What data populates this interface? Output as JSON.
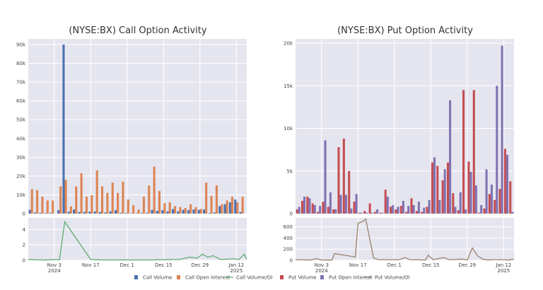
{
  "colors": {
    "call_volume": "#4c72b0",
    "call_oi": "#dd8452",
    "call_ratio": "#55a868",
    "put_volume": "#c44e52",
    "put_oi": "#8172b3",
    "put_ratio": "#937860",
    "plot_bg": "#e5e5ef",
    "grid": "#ffffff"
  },
  "legend": [
    "Call Volume",
    "Call Open Interest",
    "Call Volume/OI",
    "Put Volume",
    "Put Open Interest",
    "Put Volume/OI"
  ],
  "chart_data": [
    {
      "type": "bar",
      "title": "(NYSE:BX) Call Option Activity",
      "xlabel": "",
      "ylabel": "",
      "ylim": [
        0,
        93000
      ],
      "yticks": [
        0,
        10000,
        20000,
        30000,
        40000,
        50000,
        60000,
        70000,
        80000,
        90000
      ],
      "ytick_labels": [
        "0",
        "10k",
        "20k",
        "30k",
        "40k",
        "50k",
        "60k",
        "70k",
        "80k",
        "90k"
      ],
      "x_range": [
        "2024-10-24",
        "2025-01-16"
      ],
      "xticks": [
        "2024-11-03",
        "2024-11-17",
        "2024-12-01",
        "2024-12-15",
        "2024-12-29",
        "2025-01-12"
      ],
      "xtick_labels": [
        [
          "Nov 3",
          "2024"
        ],
        [
          "Nov 17"
        ],
        [
          "Dec 1"
        ],
        [
          "Dec 15"
        ],
        [
          "Dec 29"
        ],
        [
          "Jan 12",
          "2025"
        ]
      ],
      "dates": [
        "2024-10-25",
        "2024-10-27",
        "2024-10-29",
        "2024-10-31",
        "2024-11-02",
        "2024-11-05",
        "2024-11-07",
        "2024-11-09",
        "2024-11-11",
        "2024-11-13",
        "2024-11-15",
        "2024-11-17",
        "2024-11-19",
        "2024-11-21",
        "2024-11-23",
        "2024-11-25",
        "2024-11-27",
        "2024-11-29",
        "2024-12-01",
        "2024-12-03",
        "2024-12-05",
        "2024-12-07",
        "2024-12-09",
        "2024-12-11",
        "2024-12-13",
        "2024-12-15",
        "2024-12-17",
        "2024-12-19",
        "2024-12-21",
        "2024-12-23",
        "2024-12-25",
        "2024-12-27",
        "2024-12-29",
        "2024-12-31",
        "2025-01-02",
        "2025-01-04",
        "2025-01-06",
        "2025-01-08",
        "2025-01-10",
        "2025-01-12",
        "2025-01-14"
      ],
      "series": [
        {
          "name": "Call Volume",
          "values": [
            2000,
            600,
            400,
            300,
            400,
            1800,
            90000,
            1000,
            2200,
            800,
            900,
            1000,
            1100,
            800,
            600,
            1200,
            1800,
            400,
            300,
            200,
            200,
            300,
            400,
            2000,
            1500,
            1800,
            1200,
            2400,
            1200,
            2000,
            1800,
            2200,
            2000,
            2200,
            300,
            600,
            4000,
            5000,
            6000,
            7500,
            900
          ]
        },
        {
          "name": "Call Open Interest",
          "values": [
            13000,
            12500,
            9000,
            7000,
            7000,
            14500,
            18000,
            3800,
            14500,
            21500,
            9000,
            9800,
            23000,
            14500,
            11000,
            16500,
            11000,
            17000,
            7500,
            4500,
            2200,
            9000,
            15000,
            25000,
            12000,
            5500,
            6000,
            4000,
            3500,
            3000,
            5000,
            3500,
            2500,
            16500,
            9500,
            15000,
            5000,
            7000,
            9000,
            6000,
            9000
          ]
        }
      ],
      "ratio_panel": {
        "ylim": [
          0,
          5.5
        ],
        "yticks": [
          0,
          2,
          4
        ],
        "ytick_labels": [
          "0",
          "2",
          "4"
        ],
        "series": [
          {
            "name": "Call Volume/OI",
            "points": [
              [
                "2024-10-24",
                0.1
              ],
              [
                "2024-10-28",
                0.05
              ],
              [
                "2024-11-01",
                0.05
              ],
              [
                "2024-11-03",
                0.1
              ],
              [
                "2024-11-05",
                0.05
              ],
              [
                "2024-11-07",
                5.0
              ],
              [
                "2024-11-17",
                0.1
              ],
              [
                "2024-11-21",
                0.05
              ],
              [
                "2024-12-01",
                0.05
              ],
              [
                "2024-12-07",
                0.05
              ],
              [
                "2024-12-11",
                0.05
              ],
              [
                "2024-12-15",
                0.08
              ],
              [
                "2024-12-21",
                0.1
              ],
              [
                "2024-12-25",
                0.4
              ],
              [
                "2024-12-28",
                0.3
              ],
              [
                "2024-12-30",
                0.8
              ],
              [
                "2025-01-01",
                0.4
              ],
              [
                "2025-01-03",
                0.6
              ],
              [
                "2025-01-06",
                0.1
              ],
              [
                "2025-01-11",
                0.2
              ],
              [
                "2025-01-13",
                0.1
              ],
              [
                "2025-01-15",
                0.8
              ],
              [
                "2025-01-16",
                0.1
              ]
            ]
          }
        ]
      }
    },
    {
      "type": "bar",
      "title": "(NYSE:BX) Put Option Activity",
      "xlabel": "",
      "ylabel": "",
      "ylim": [
        0,
        20500
      ],
      "yticks": [
        0,
        5000,
        10000,
        15000,
        20000
      ],
      "ytick_labels": [
        "0",
        "5k",
        "10k",
        "15k",
        "20k"
      ],
      "x_range": [
        "2024-10-24",
        "2025-01-16"
      ],
      "xticks": [
        "2024-11-03",
        "2024-11-17",
        "2024-12-01",
        "2024-12-15",
        "2024-12-29",
        "2025-01-12"
      ],
      "xtick_labels": [
        [
          "Nov 3",
          "2024"
        ],
        [
          "Nov 17"
        ],
        [
          "Dec 1"
        ],
        [
          "Dec 15"
        ],
        [
          "Dec 29"
        ],
        [
          "Jan 12",
          "2025"
        ]
      ],
      "dates": [
        "2024-10-25",
        "2024-10-27",
        "2024-10-29",
        "2024-10-31",
        "2024-11-02",
        "2024-11-04",
        "2024-11-06",
        "2024-11-08",
        "2024-11-10",
        "2024-11-12",
        "2024-11-14",
        "2024-11-16",
        "2024-11-18",
        "2024-11-20",
        "2024-11-22",
        "2024-11-24",
        "2024-11-26",
        "2024-11-28",
        "2024-11-30",
        "2024-12-02",
        "2024-12-04",
        "2024-12-06",
        "2024-12-08",
        "2024-12-10",
        "2024-12-12",
        "2024-12-14",
        "2024-12-16",
        "2024-12-18",
        "2024-12-20",
        "2024-12-22",
        "2024-12-24",
        "2024-12-26",
        "2024-12-28",
        "2024-12-30",
        "2025-01-01",
        "2025-01-03",
        "2025-01-05",
        "2025-01-07",
        "2025-01-09",
        "2025-01-11",
        "2025-01-13",
        "2025-01-15"
      ],
      "series": [
        {
          "name": "Put Volume",
          "values": [
            500,
            1500,
            2000,
            1200,
            200,
            1400,
            800,
            500,
            7800,
            8800,
            5000,
            1400,
            100,
            300,
            1200,
            200,
            100,
            2800,
            800,
            500,
            900,
            200,
            1800,
            300,
            200,
            800,
            6000,
            5600,
            3900,
            6000,
            2400,
            400,
            14500,
            6100,
            14500,
            100,
            600,
            2300,
            1600,
            2900,
            7600,
            3800
          ]
        },
        {
          "name": "Put Open Interest",
          "values": [
            800,
            2000,
            1800,
            1000,
            900,
            8600,
            2500,
            500,
            2200,
            2200,
            600,
            2300,
            100,
            100,
            100,
            500,
            100,
            2000,
            1000,
            800,
            1500,
            900,
            1000,
            1400,
            700,
            1600,
            6600,
            1600,
            5200,
            13300,
            800,
            2500,
            500,
            4900,
            3300,
            1000,
            5200,
            3400,
            15000,
            19700,
            6900,
            200
          ]
        }
      ],
      "ratio_panel": {
        "ylim": [
          0,
          760
        ],
        "yticks": [
          0,
          200,
          400,
          600
        ],
        "ytick_labels": [
          "0",
          "200",
          "400",
          "600"
        ],
        "series": [
          {
            "name": "Put Volume/OI",
            "points": [
              [
                "2024-10-24",
                10
              ],
              [
                "2024-10-30",
                5
              ],
              [
                "2024-11-01",
                30
              ],
              [
                "2024-11-03",
                5
              ],
              [
                "2024-11-07",
                5
              ],
              [
                "2024-11-08",
                120
              ],
              [
                "2024-11-16",
                60
              ],
              [
                "2024-11-17",
                660
              ],
              [
                "2024-11-19",
                700
              ],
              [
                "2024-11-20",
                740
              ],
              [
                "2024-11-23",
                40
              ],
              [
                "2024-11-25",
                10
              ],
              [
                "2024-12-03",
                10
              ],
              [
                "2024-12-05",
                50
              ],
              [
                "2024-12-07",
                10
              ],
              [
                "2024-12-13",
                5
              ],
              [
                "2024-12-14",
                90
              ],
              [
                "2024-12-16",
                10
              ],
              [
                "2024-12-20",
                50
              ],
              [
                "2024-12-22",
                10
              ],
              [
                "2024-12-27",
                20
              ],
              [
                "2024-12-29",
                5
              ],
              [
                "2024-12-31",
                220
              ],
              [
                "2025-01-02",
                80
              ],
              [
                "2025-01-04",
                20
              ],
              [
                "2025-01-06",
                5
              ],
              [
                "2025-01-08",
                10
              ],
              [
                "2025-01-12",
                10
              ],
              [
                "2025-01-14",
                5
              ],
              [
                "2025-01-16",
                20
              ]
            ]
          }
        ]
      }
    }
  ]
}
